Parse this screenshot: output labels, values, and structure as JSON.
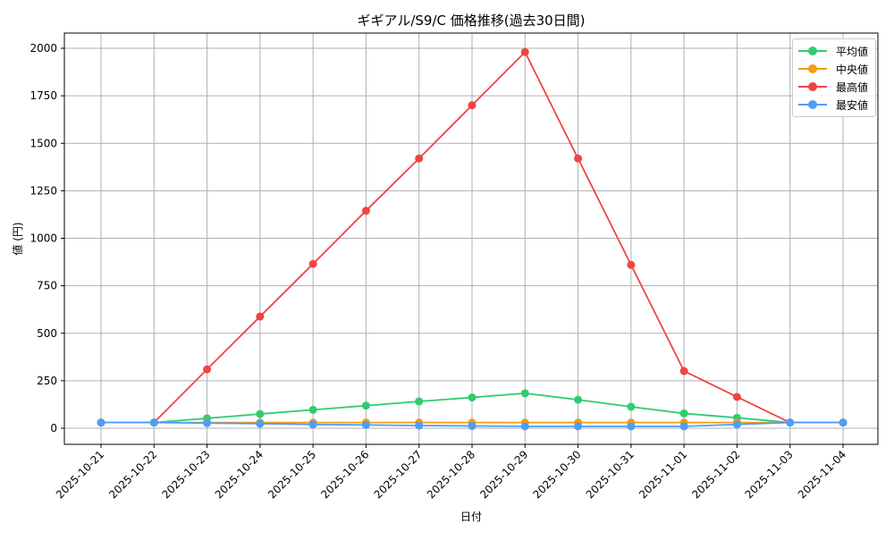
{
  "chart_data": {
    "type": "line",
    "title": "ギギアル/S9/C 価格推移(過去30日間)",
    "xlabel": "日付",
    "ylabel": "値 (円)",
    "ylim": [
      -85,
      2080
    ],
    "yticks": [
      0,
      250,
      500,
      750,
      1000,
      1250,
      1500,
      1750,
      2000
    ],
    "grid": true,
    "legend_position": "upper right",
    "categories": [
      "2025-10-21",
      "2025-10-22",
      "2025-10-23",
      "2025-10-24",
      "2025-10-25",
      "2025-10-26",
      "2025-10-27",
      "2025-10-28",
      "2025-10-29",
      "2025-10-30",
      "2025-10-31",
      "2025-11-01",
      "2025-11-02",
      "2025-11-03",
      "2025-11-04"
    ],
    "series": [
      {
        "name": "平均値",
        "color": "#2ecc71",
        "values": [
          30,
          30,
          52,
          75,
          97,
          119,
          141,
          162,
          184,
          150,
          113,
          78,
          55,
          30,
          30
        ]
      },
      {
        "name": "中央値",
        "color": "#f39c12",
        "values": [
          30,
          30,
          30,
          30,
          30,
          30,
          30,
          30,
          30,
          30,
          30,
          30,
          30,
          30,
          30
        ]
      },
      {
        "name": "最高値",
        "color": "#ef4444",
        "values": [
          30,
          30,
          310,
          588,
          865,
          1145,
          1420,
          1700,
          1980,
          1420,
          860,
          301,
          165,
          30,
          30
        ]
      },
      {
        "name": "最安値",
        "color": "#4f9cf9",
        "values": [
          30,
          30,
          27,
          24,
          20,
          17,
          14,
          12,
          10,
          10,
          10,
          10,
          20,
          30,
          30
        ]
      }
    ]
  }
}
